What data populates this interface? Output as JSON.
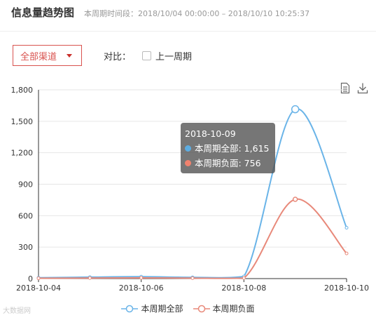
{
  "header": {
    "title": "信息量趋势图",
    "period": "本周期时间段：2018/10/04 00:00:00 – 2018/10/10 10:25:37"
  },
  "controls": {
    "channel_label": "全部渠道",
    "compare_label": "对比：",
    "previous_period_label": "上一周期"
  },
  "tooltip": {
    "date": "2018-10-09",
    "rows": [
      {
        "label": "本周期全部: 1,615",
        "color": "#5dade2"
      },
      {
        "label": "本周期负面: 756",
        "color": "#f0826e"
      }
    ]
  },
  "watermark": "大数据网",
  "chart_data": {
    "type": "line",
    "x": [
      "2018-10-04",
      "2018-10-05",
      "2018-10-06",
      "2018-10-07",
      "2018-10-08",
      "2018-10-09",
      "2018-10-10"
    ],
    "xticks": [
      "2018-10-04",
      "2018-10-06",
      "2018-10-08",
      "2018-10-10"
    ],
    "yticks": [
      "0",
      "300",
      "600",
      "900",
      "1,200",
      "1,500",
      "1,800"
    ],
    "ylim": [
      0,
      1800
    ],
    "grid": true,
    "legend_position": "bottom",
    "series": [
      {
        "name": "本周期全部",
        "color": "#6ab4e8",
        "values": [
          8,
          14,
          18,
          12,
          20,
          1615,
          485
        ]
      },
      {
        "name": "本周期负面",
        "color": "#e8897a",
        "values": [
          3,
          5,
          7,
          4,
          5,
          756,
          240
        ]
      }
    ]
  }
}
